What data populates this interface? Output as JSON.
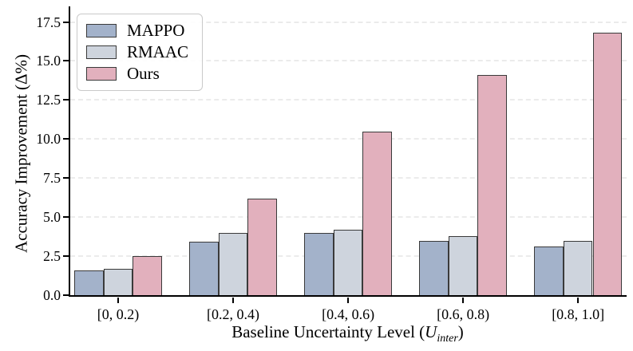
{
  "chart_data": {
    "type": "bar",
    "categories": [
      "[0, 0.2)",
      "[0.2, 0.4)",
      "[0.4, 0.6)",
      "[0.6, 0.8)",
      "[0.8, 1.0]"
    ],
    "series": [
      {
        "name": "MAPPO",
        "color": "#a3b2ca",
        "values": [
          1.6,
          3.4,
          4.0,
          3.5,
          3.1
        ]
      },
      {
        "name": "RMAAC",
        "color": "#ced4dd",
        "values": [
          1.7,
          4.0,
          4.2,
          3.8,
          3.5
        ]
      },
      {
        "name": "Ours",
        "color": "#e2b0bd",
        "values": [
          2.5,
          6.2,
          10.5,
          14.1,
          16.8
        ]
      }
    ],
    "ylabel": "Accuracy Improvement (Δ%)",
    "xlabel_prefix": "Baseline Uncertainty Level (",
    "xlabel_variable": "U",
    "xlabel_subscript": "inter",
    "xlabel_suffix": ")",
    "ytick_labels": [
      "0.0",
      "2.5",
      "5.0",
      "7.5",
      "10.0",
      "12.5",
      "15.0",
      "17.5"
    ],
    "yticks": [
      0,
      2.5,
      5,
      7.5,
      10,
      12.5,
      15,
      17.5
    ],
    "ylim": [
      0,
      18.6
    ],
    "grid": "horizontal-dashed",
    "legend_position": "upper-left",
    "colors": {
      "bar_edge": "#3a3a3a",
      "axis": "#000000",
      "gridline": "#ebebeb",
      "background": "#ffffff"
    }
  }
}
